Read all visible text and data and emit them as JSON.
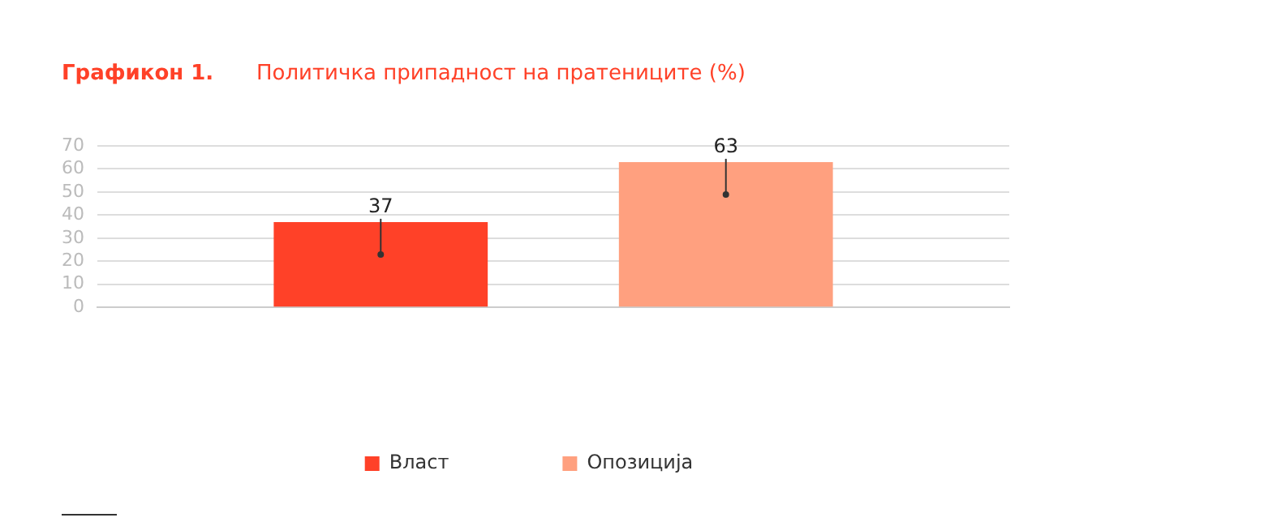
{
  "chart_data": {
    "type": "bar",
    "title": "Графикон 1.",
    "subtitle": "Политичка припадност на пратениците (%)",
    "categories": [
      null
    ],
    "series": [
      {
        "name": "Власт",
        "color": "#ff4128",
        "values": [
          37
        ]
      },
      {
        "name": "Опозиција",
        "color": "#ffa07f",
        "values": [
          63
        ]
      }
    ],
    "ylim": [
      0,
      70
    ],
    "yticks": [
      0,
      10,
      20,
      30,
      40,
      50,
      60,
      70
    ],
    "grid": "y",
    "legend": "bottom",
    "data_labels": true
  }
}
